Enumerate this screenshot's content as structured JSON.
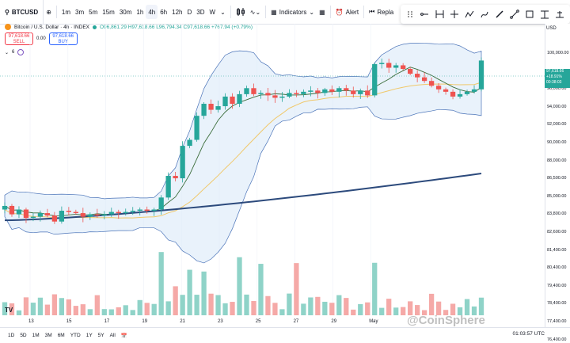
{
  "toolbar": {
    "symbol": "BTCUSD",
    "intervals": [
      "1m",
      "3m",
      "5m",
      "15m",
      "30m",
      "1h",
      "4h",
      "6h",
      "12h",
      "D",
      "3D",
      "W"
    ],
    "active_interval": "4h",
    "indicators_label": "Indicators",
    "alert_label": "Alert",
    "replay_label": "Repla"
  },
  "legend": {
    "title": "Bitcoin / U.S. Dollar · 4h · INDEX",
    "ohlc": "O96,861.29 H97,618.66 L96,794.34 C97,618.66 +767.94 (+0.79%)"
  },
  "trade": {
    "sell_price": "97,618.66",
    "sell_label": "SELL",
    "spread": "0.00",
    "buy_price": "97,618.66",
    "buy_label": "BUY"
  },
  "indicators_count": "6",
  "price_scale": {
    "currency": "USD",
    "labels": [
      "100,000.00",
      "98,000.00",
      "96,000.00",
      "94,000.00",
      "92,000.00",
      "90,000.00",
      "88,000.00",
      "86,500.00",
      "85,000.00",
      "83,800.00",
      "82,600.00",
      "81,400.00",
      "80,400.00",
      "79,400.00",
      "78,400.00",
      "77,400.00",
      "76,400.00"
    ],
    "last_price": "97,618.66",
    "last_change": "+18.91%",
    "countdown": "00:38:03"
  },
  "time_axis": [
    "13",
    "15",
    "17",
    "19",
    "21",
    "23",
    "25",
    "27",
    "29",
    "May"
  ],
  "bottom_bar": {
    "ranges": [
      "1D",
      "5D",
      "1M",
      "3M",
      "6M",
      "YTD",
      "1Y",
      "5Y",
      "All"
    ],
    "clock": "01:03:57 UTC"
  },
  "logo_text": "TV",
  "watermark": "@CoinSphere",
  "colors": {
    "up": "#26a69a",
    "down": "#ef5350",
    "band_fill": "#dbe9f8",
    "band_line": "#4a73b8",
    "long_ma": "#2c4a7c",
    "mid_ma": "#f0c86a",
    "short_ma": "#3b6d3b"
  },
  "chart_data": {
    "type": "candlestick",
    "symbol": "BTCUSD",
    "interval": "4h",
    "y_range": [
      76400,
      100000
    ],
    "last_close": 97618.66,
    "approx_close_series": [
      85500,
      84800,
      85200,
      84500,
      84600,
      84900,
      84700,
      84200,
      85100,
      85000,
      84900,
      84600,
      84800,
      84700,
      84800,
      85000,
      84900,
      85000,
      85100,
      85200,
      85100,
      85200,
      86200,
      88000,
      87800,
      90500,
      91000,
      93000,
      94000,
      93500,
      93800,
      94600,
      94000,
      94800,
      95300,
      94800,
      94900,
      94700,
      94500,
      94600,
      94900,
      94800,
      95000,
      95100,
      94900,
      95200,
      95000,
      95300,
      95100,
      94800,
      95100,
      94700,
      97300,
      97400,
      97000,
      97200,
      96900,
      96500,
      96200,
      95900,
      95500,
      95200,
      95000,
      94600,
      94800,
      95000,
      95200,
      97600
    ]
  }
}
